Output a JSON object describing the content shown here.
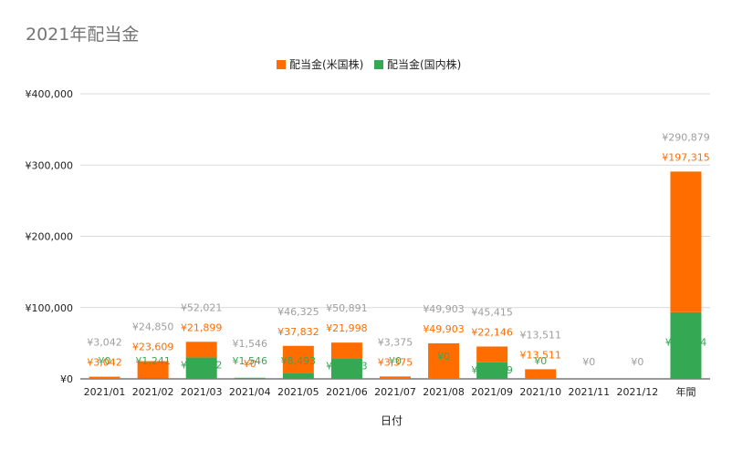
{
  "chart_data": {
    "type": "bar",
    "stacked": true,
    "title": "2021年配当金",
    "xlabel": "日付",
    "ylabel": "",
    "ylim": [
      0,
      400000
    ],
    "yticks": [
      0,
      100000,
      200000,
      300000,
      400000
    ],
    "ytick_labels": [
      "¥0",
      "¥100,000",
      "¥200,000",
      "¥300,000",
      "¥400,000"
    ],
    "grid": true,
    "legend_position": "top",
    "categories": [
      "2021/01",
      "2021/02",
      "2021/03",
      "2021/04",
      "2021/05",
      "2021/06",
      "2021/07",
      "2021/08",
      "2021/09",
      "2021/10",
      "2021/11",
      "2021/12",
      "年間"
    ],
    "series": [
      {
        "name": "配当金(国内株)",
        "color": "#34a853",
        "values": [
          0,
          1241,
          30122,
          1546,
          8493,
          28893,
          0,
          0,
          23269,
          0,
          0,
          0,
          93564
        ],
        "labels": [
          "¥0",
          "¥1,241",
          "¥30,122",
          "¥1,546",
          "¥8,493",
          "¥28,893",
          "¥0",
          "¥0",
          "¥23,269",
          "¥0",
          "",
          "",
          "¥93,564"
        ]
      },
      {
        "name": "配当金(米国株)",
        "color": "#ff6d01",
        "values": [
          3042,
          23609,
          21899,
          0,
          37832,
          21998,
          3375,
          49903,
          22146,
          13511,
          0,
          0,
          197315
        ],
        "labels": [
          "¥3,042",
          "¥23,609",
          "¥21,899",
          "¥0",
          "¥37,832",
          "¥21,998",
          "¥3,375",
          "¥49,903",
          "¥22,146",
          "¥13,511",
          "",
          "",
          "¥197,315"
        ]
      }
    ],
    "totals": [
      3042,
      24850,
      52021,
      1546,
      46325,
      50891,
      3375,
      49903,
      45415,
      13511,
      0,
      0,
      290879
    ],
    "total_labels": [
      "¥3,042",
      "¥24,850",
      "¥52,021",
      "¥1,546",
      "¥46,325",
      "¥50,891",
      "¥3,375",
      "¥49,903",
      "¥45,415",
      "¥13,511",
      "¥0",
      "¥0",
      "¥290,879"
    ],
    "total_label_color": "#9e9e9e",
    "us_label_color": "#ff6d01",
    "jp_label_color": "#34a853"
  }
}
